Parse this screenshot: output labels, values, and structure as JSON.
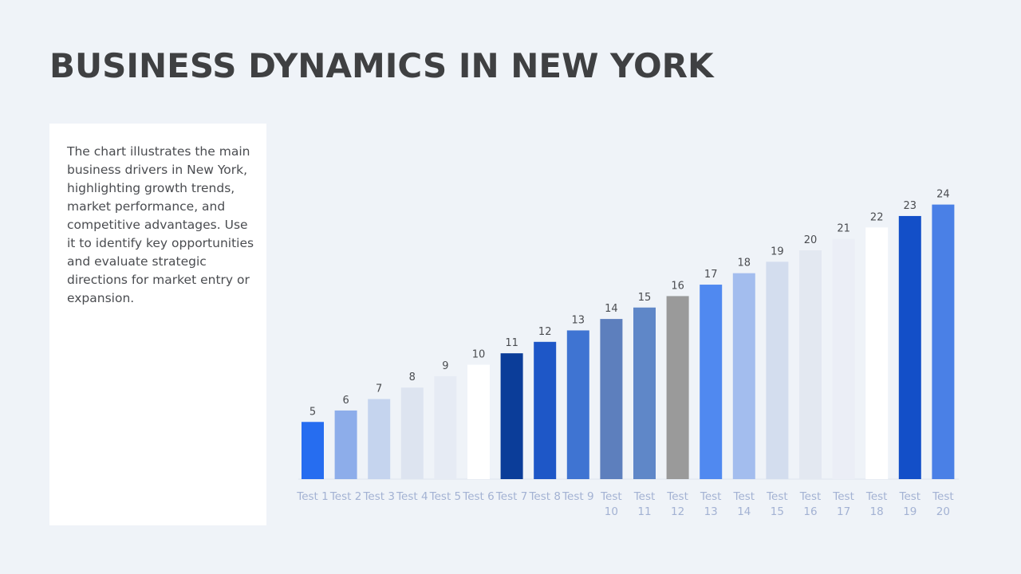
{
  "page": {
    "title": "BUSINESS DYNAMICS IN NEW YORK",
    "description": "The chart illustrates the main business drivers in New York, highlighting growth trends, market performance, and competitive advantages. Use it to identify key opportunities and evaluate strategic directions for market entry or expansion."
  },
  "chart_data": {
    "type": "bar",
    "title": "",
    "xlabel": "",
    "ylabel": "",
    "ylim": [
      0,
      24
    ],
    "grid": false,
    "categories": [
      "Test 1",
      "Test 2",
      "Test 3",
      "Test 4",
      "Test 5",
      "Test 6",
      "Test 7",
      "Test 8",
      "Test 9",
      "Test 10",
      "Test 11",
      "Test 12",
      "Test 13",
      "Test 14",
      "Test 15",
      "Test 16",
      "Test 17",
      "Test 18",
      "Test 19",
      "Test 20"
    ],
    "values": [
      5,
      6,
      7,
      8,
      9,
      10,
      11,
      12,
      13,
      14,
      15,
      16,
      17,
      18,
      19,
      20,
      21,
      22,
      23,
      24
    ],
    "colors": [
      "#266df0",
      "#8dadea",
      "#c5d4ee",
      "#dde4f0",
      "#e6ebf4",
      "#ffffff",
      "#0b3d99",
      "#1e57c7",
      "#3f74d2",
      "#5d7fbd",
      "#5f87c8",
      "#9a9a9a",
      "#5089f0",
      "#a3bdee",
      "#d3ddee",
      "#e3e8f1",
      "#ebeef6",
      "#ffffff",
      "#134fc8",
      "#4a80e6"
    ]
  }
}
